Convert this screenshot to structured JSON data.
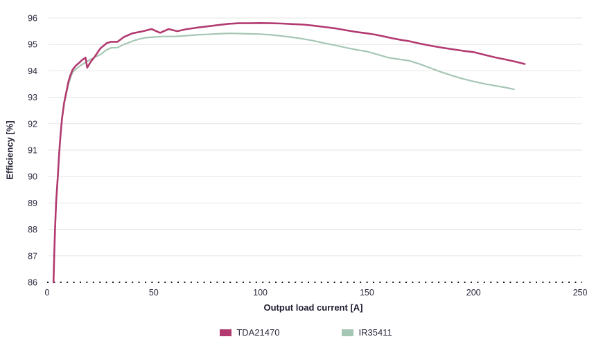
{
  "chart_data": {
    "type": "line",
    "title": "",
    "xlabel": "Output load current [A]",
    "ylabel": "Efficiency [%]",
    "xlim": [
      0,
      250
    ],
    "ylim": [
      86,
      96
    ],
    "x_ticks": [
      0,
      50,
      100,
      150,
      200,
      250
    ],
    "y_ticks": [
      86,
      87,
      88,
      89,
      90,
      91,
      92,
      93,
      94,
      95,
      96
    ],
    "grid": "horizontal light-gray lines at each integer; bottom axis (86) is a black dotted line",
    "legend_position": "bottom-center",
    "colors": {
      "gridline": "#e6e6e6",
      "dotted_axis": "#1a1a1a",
      "tick_text": "#2a2a3e",
      "title_text": "#1d1d30"
    },
    "series": [
      {
        "name": "TDA21470",
        "color": "#b23a70",
        "stroke_width": 2.6,
        "points": [
          [
            3,
            86.0
          ],
          [
            3.3,
            87.0
          ],
          [
            3.7,
            88.0
          ],
          [
            4.2,
            89.0
          ],
          [
            5,
            90.0
          ],
          [
            5.6,
            90.8
          ],
          [
            6.3,
            91.6
          ],
          [
            7,
            92.2
          ],
          [
            8,
            92.8
          ],
          [
            9,
            93.2
          ],
          [
            10,
            93.6
          ],
          [
            11,
            93.85
          ],
          [
            12,
            94.05
          ],
          [
            13.5,
            94.2
          ],
          [
            15,
            94.3
          ],
          [
            16.5,
            94.42
          ],
          [
            18,
            94.5
          ],
          [
            18.8,
            94.12
          ],
          [
            20.5,
            94.35
          ],
          [
            22,
            94.5
          ],
          [
            25,
            94.85
          ],
          [
            28,
            95.05
          ],
          [
            30,
            95.1
          ],
          [
            33,
            95.1
          ],
          [
            36,
            95.28
          ],
          [
            40,
            95.42
          ],
          [
            45,
            95.5
          ],
          [
            49,
            95.58
          ],
          [
            53,
            95.44
          ],
          [
            57,
            95.58
          ],
          [
            61,
            95.5
          ],
          [
            65,
            95.57
          ],
          [
            70,
            95.63
          ],
          [
            75,
            95.68
          ],
          [
            80,
            95.73
          ],
          [
            85,
            95.78
          ],
          [
            90,
            95.8
          ],
          [
            95,
            95.8
          ],
          [
            100,
            95.81
          ],
          [
            105,
            95.8
          ],
          [
            110,
            95.79
          ],
          [
            115,
            95.77
          ],
          [
            120,
            95.75
          ],
          [
            125,
            95.71
          ],
          [
            130,
            95.66
          ],
          [
            135,
            95.61
          ],
          [
            140,
            95.54
          ],
          [
            145,
            95.47
          ],
          [
            150,
            95.42
          ],
          [
            154,
            95.37
          ],
          [
            158,
            95.3
          ],
          [
            162,
            95.23
          ],
          [
            166,
            95.17
          ],
          [
            170,
            95.12
          ],
          [
            175,
            95.03
          ],
          [
            180,
            94.95
          ],
          [
            185,
            94.88
          ],
          [
            190,
            94.82
          ],
          [
            195,
            94.76
          ],
          [
            200,
            94.71
          ],
          [
            205,
            94.61
          ],
          [
            210,
            94.51
          ],
          [
            215,
            94.43
          ],
          [
            220,
            94.34
          ],
          [
            224,
            94.26
          ]
        ]
      },
      {
        "name": "IR35411",
        "color": "#a6c6b5",
        "stroke_width": 2.2,
        "points": [
          [
            3,
            86.0
          ],
          [
            3.3,
            87.0
          ],
          [
            3.7,
            88.0
          ],
          [
            4.2,
            89.0
          ],
          [
            5,
            90.0
          ],
          [
            5.6,
            90.8
          ],
          [
            6.3,
            91.6
          ],
          [
            7,
            92.2
          ],
          [
            8,
            92.8
          ],
          [
            9,
            93.15
          ],
          [
            10,
            93.5
          ],
          [
            11,
            93.75
          ],
          [
            12,
            93.95
          ],
          [
            14,
            94.1
          ],
          [
            16,
            94.22
          ],
          [
            18,
            94.32
          ],
          [
            20,
            94.42
          ],
          [
            22,
            94.5
          ],
          [
            25,
            94.62
          ],
          [
            28,
            94.8
          ],
          [
            30,
            94.87
          ],
          [
            33,
            94.88
          ],
          [
            36,
            95.0
          ],
          [
            40,
            95.12
          ],
          [
            43,
            95.2
          ],
          [
            46,
            95.25
          ],
          [
            50,
            95.28
          ],
          [
            55,
            95.3
          ],
          [
            60,
            95.3
          ],
          [
            65,
            95.33
          ],
          [
            70,
            95.36
          ],
          [
            75,
            95.38
          ],
          [
            80,
            95.4
          ],
          [
            85,
            95.42
          ],
          [
            90,
            95.41
          ],
          [
            95,
            95.4
          ],
          [
            100,
            95.39
          ],
          [
            105,
            95.36
          ],
          [
            110,
            95.32
          ],
          [
            115,
            95.27
          ],
          [
            120,
            95.21
          ],
          [
            125,
            95.14
          ],
          [
            130,
            95.05
          ],
          [
            135,
            94.97
          ],
          [
            140,
            94.88
          ],
          [
            145,
            94.8
          ],
          [
            150,
            94.73
          ],
          [
            155,
            94.62
          ],
          [
            160,
            94.5
          ],
          [
            165,
            94.44
          ],
          [
            170,
            94.38
          ],
          [
            175,
            94.25
          ],
          [
            180,
            94.1
          ],
          [
            185,
            93.95
          ],
          [
            190,
            93.82
          ],
          [
            195,
            93.7
          ],
          [
            200,
            93.6
          ],
          [
            205,
            93.51
          ],
          [
            210,
            93.44
          ],
          [
            215,
            93.37
          ],
          [
            219,
            93.3
          ]
        ]
      }
    ]
  },
  "legend": {
    "items": [
      {
        "label": "TDA21470",
        "color": "#b23a70"
      },
      {
        "label": "IR35411",
        "color": "#a6c6b5"
      }
    ]
  }
}
